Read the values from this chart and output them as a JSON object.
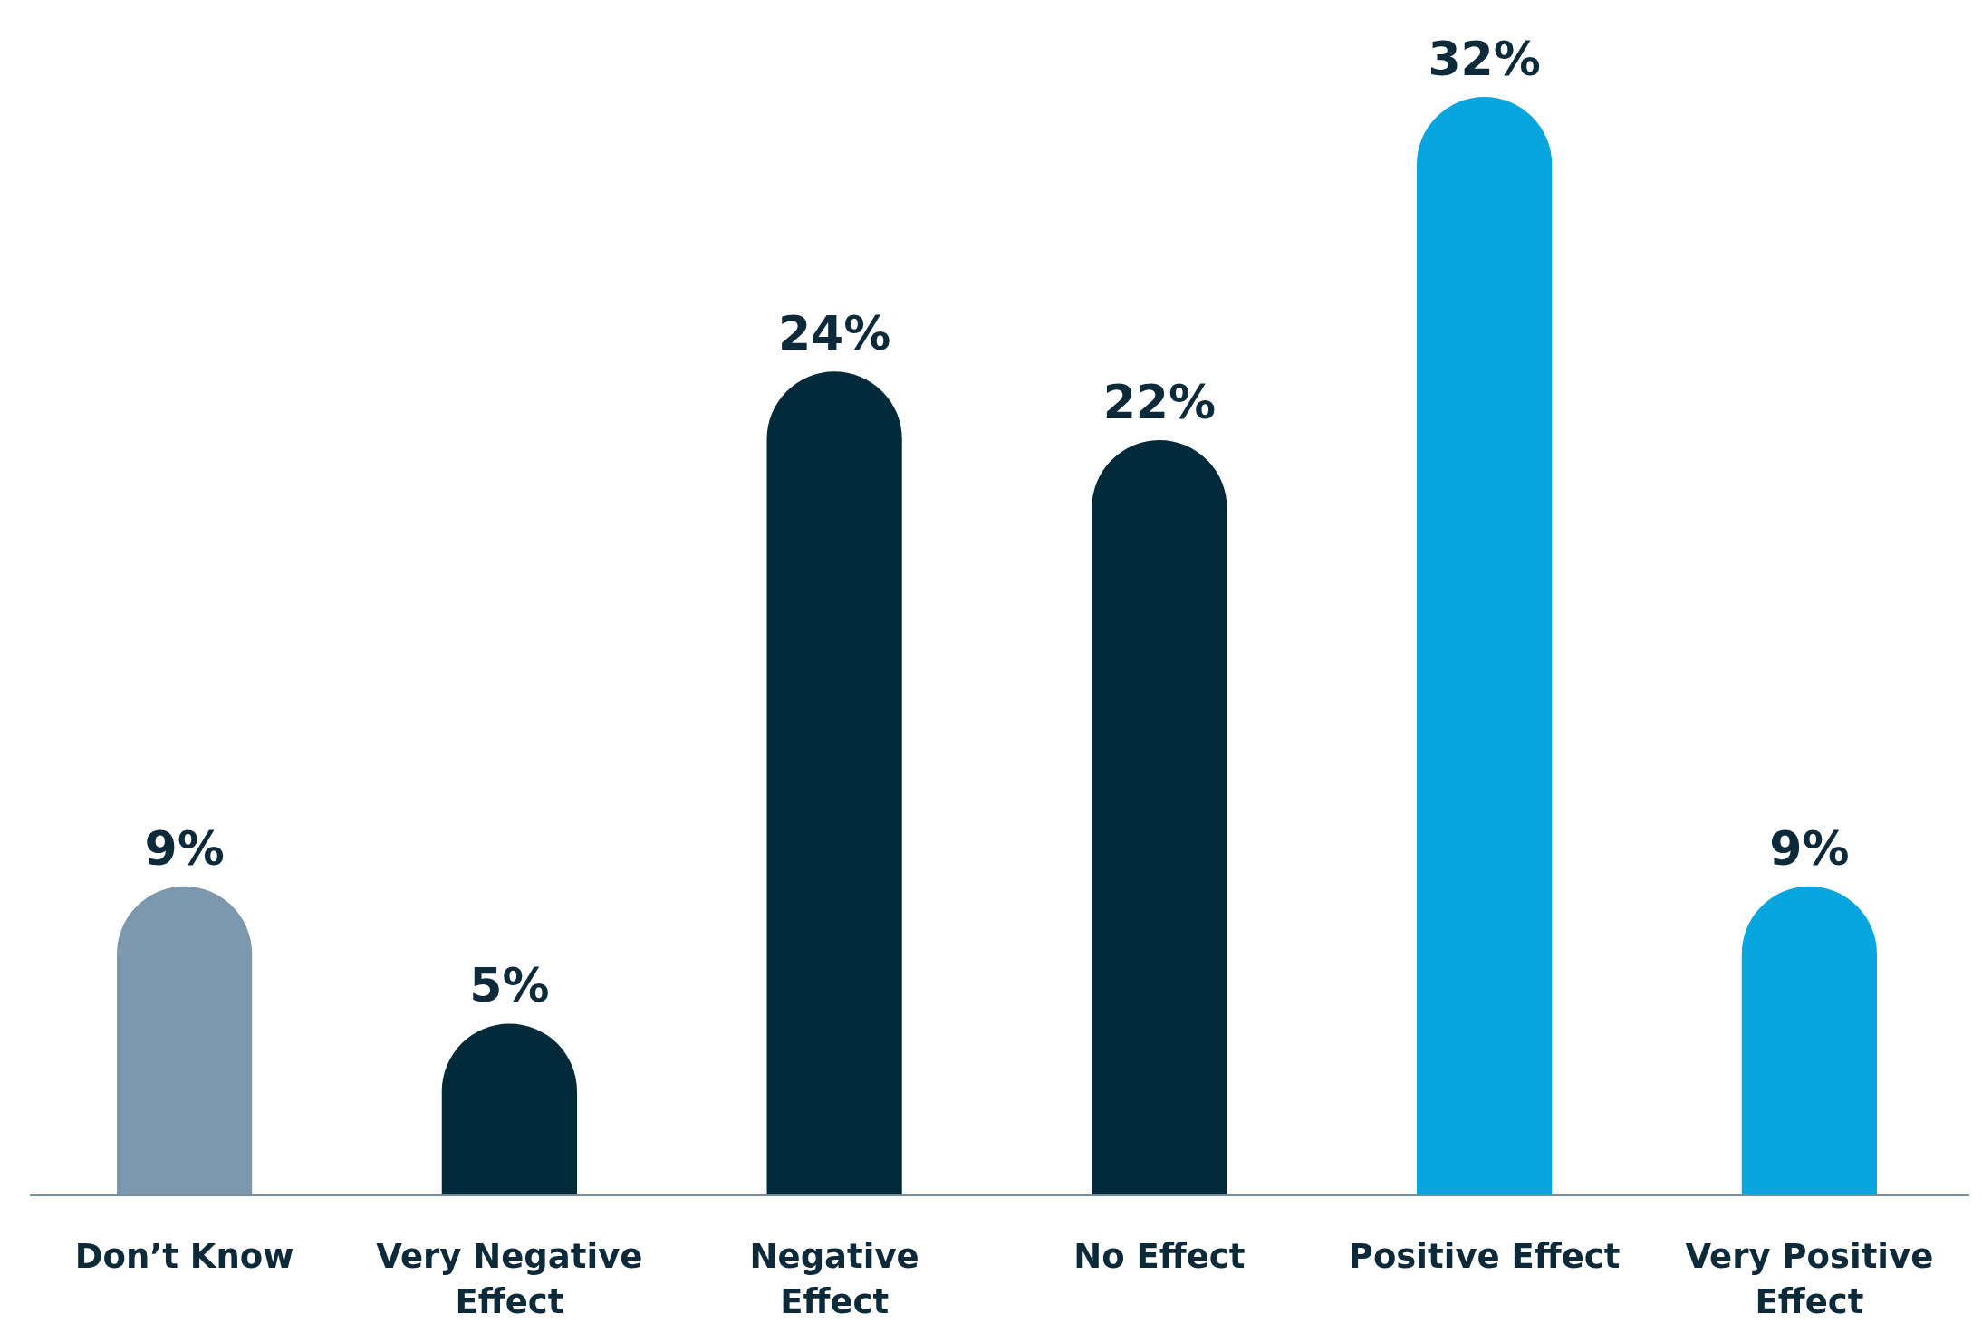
{
  "chart_data": {
    "type": "bar",
    "categories": [
      "Don’t Know",
      "Very Negative Effect",
      "Negative Effect",
      "No Effect",
      "Positive Effect",
      "Very Positive Effect"
    ],
    "values": [
      9,
      5,
      24,
      22,
      32,
      9
    ],
    "colors": [
      "#7d98ad",
      "#022a3a",
      "#022a3a",
      "#022a3a",
      "#08a6de",
      "#08a6de"
    ],
    "value_labels": [
      "9%",
      "5%",
      "24%",
      "22%",
      "32%",
      "9%"
    ]
  }
}
